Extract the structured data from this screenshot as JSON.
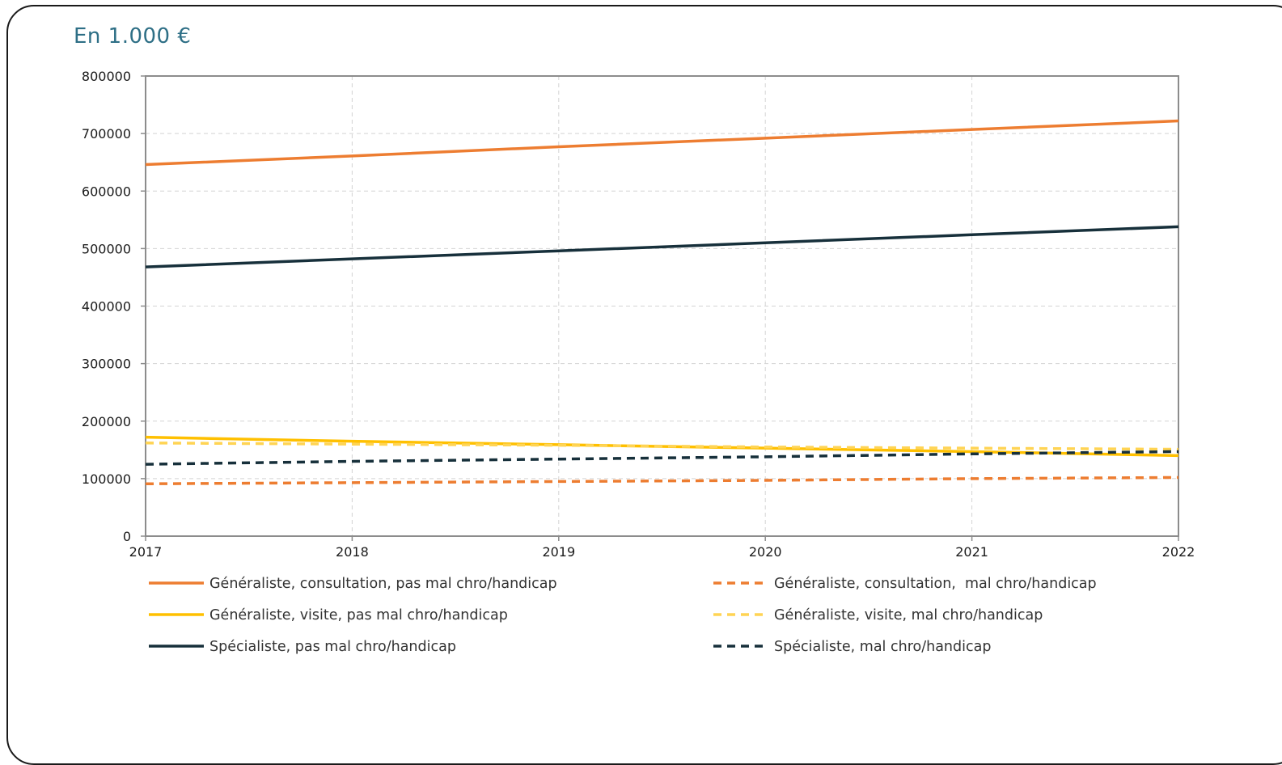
{
  "chart_data": {
    "type": "line",
    "unit_label": "En 1.000 €",
    "x": [
      "2017",
      "2018",
      "2019",
      "2020",
      "2021",
      "2022"
    ],
    "ylim": [
      0,
      800000
    ],
    "yticks": [
      0,
      100000,
      200000,
      300000,
      400000,
      500000,
      600000,
      700000,
      800000
    ],
    "grid": true,
    "legend_position": "bottom",
    "series": [
      {
        "name": "Généraliste, consultation, pas mal chro/handicap",
        "values": [
          646000,
          661000,
          677000,
          692000,
          707000,
          722000
        ],
        "color": "#ed7d31",
        "dashed": false
      },
      {
        "name": "Généraliste, consultation,  mal chro/handicap",
        "values": [
          91000,
          93000,
          95000,
          97000,
          100000,
          102000
        ],
        "color": "#ed7d31",
        "dashed": true
      },
      {
        "name": "Généraliste, visite, pas mal chro/handicap",
        "values": [
          172000,
          165000,
          159000,
          153000,
          147000,
          140000
        ],
        "color": "#ffc000",
        "dashed": false
      },
      {
        "name": "Généraliste, visite, mal chro/handicap",
        "values": [
          162000,
          160000,
          158000,
          155000,
          153000,
          151000
        ],
        "color": "#ffd454",
        "dashed": true
      },
      {
        "name": "Spécialiste, pas mal chro/handicap",
        "values": [
          468000,
          482000,
          496000,
          510000,
          524000,
          538000
        ],
        "color": "#17303b",
        "dashed": false
      },
      {
        "name": "Spécialiste, mal chro/handicap",
        "values": [
          125000,
          130000,
          134000,
          138000,
          143000,
          147000
        ],
        "color": "#17303b",
        "dashed": true
      }
    ]
  }
}
